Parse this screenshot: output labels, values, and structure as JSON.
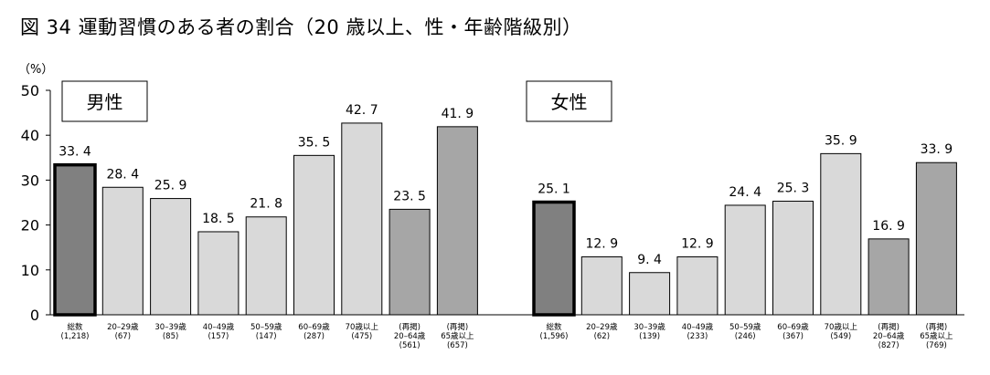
{
  "title": "図 34 運動習慣のある者の割合（20 歳以上、性・年齢階級別）",
  "y_unit": "（%）",
  "chart_data": {
    "type": "bar",
    "ylim": [
      0,
      50
    ],
    "yticks": [
      0,
      10,
      20,
      30,
      40,
      50
    ],
    "grid": false,
    "panels": [
      {
        "name": "男性",
        "categories": [
          {
            "label": "総数",
            "n": "(1,218)"
          },
          {
            "label": "20–29歳",
            "n": "(67)"
          },
          {
            "label": "30–39歳",
            "n": "(85)"
          },
          {
            "label": "40–49歳",
            "n": "(157)"
          },
          {
            "label": "50–59歳",
            "n": "(147)"
          },
          {
            "label": "60–69歳",
            "n": "(287)"
          },
          {
            "label": "70歳以上",
            "n": "(475)"
          },
          {
            "label": "(再掲)",
            "label2": "20–64歳",
            "n": "(561)"
          },
          {
            "label": "(再掲)",
            "label2": "65歳以上",
            "n": "(657)"
          }
        ],
        "values": [
          33.4,
          28.4,
          25.9,
          18.5,
          21.8,
          35.5,
          42.7,
          23.5,
          41.9
        ],
        "value_labels": [
          "33. 4",
          "28. 4",
          "25. 9",
          "18. 5",
          "21. 8",
          "35. 5",
          "42. 7",
          "23. 5",
          "41. 9"
        ],
        "kinds": [
          "total",
          "age",
          "age",
          "age",
          "age",
          "age",
          "age",
          "restated",
          "restated"
        ]
      },
      {
        "name": "女性",
        "categories": [
          {
            "label": "総数",
            "n": "(1,596)"
          },
          {
            "label": "20–29歳",
            "n": "(62)"
          },
          {
            "label": "30–39歳",
            "n": "(139)"
          },
          {
            "label": "40–49歳",
            "n": "(233)"
          },
          {
            "label": "50–59歳",
            "n": "(246)"
          },
          {
            "label": "60–69歳",
            "n": "(367)"
          },
          {
            "label": "70歳以上",
            "n": "(549)"
          },
          {
            "label": "(再掲)",
            "label2": "20–64歳",
            "n": "(827)"
          },
          {
            "label": "(再掲)",
            "label2": "65歳以上",
            "n": "(769)"
          }
        ],
        "values": [
          25.1,
          12.9,
          9.4,
          12.9,
          24.4,
          25.3,
          35.9,
          16.9,
          33.9
        ],
        "value_labels": [
          "25. 1",
          "12. 9",
          "9. 4",
          "12. 9",
          "24. 4",
          "25. 3",
          "35. 9",
          "16. 9",
          "33. 9"
        ],
        "kinds": [
          "total",
          "age",
          "age",
          "age",
          "age",
          "age",
          "age",
          "restated",
          "restated"
        ]
      }
    ],
    "colors": {
      "total": "#808080",
      "age": "#d9d9d9",
      "restated": "#a6a6a6",
      "outline": "#000000"
    }
  }
}
